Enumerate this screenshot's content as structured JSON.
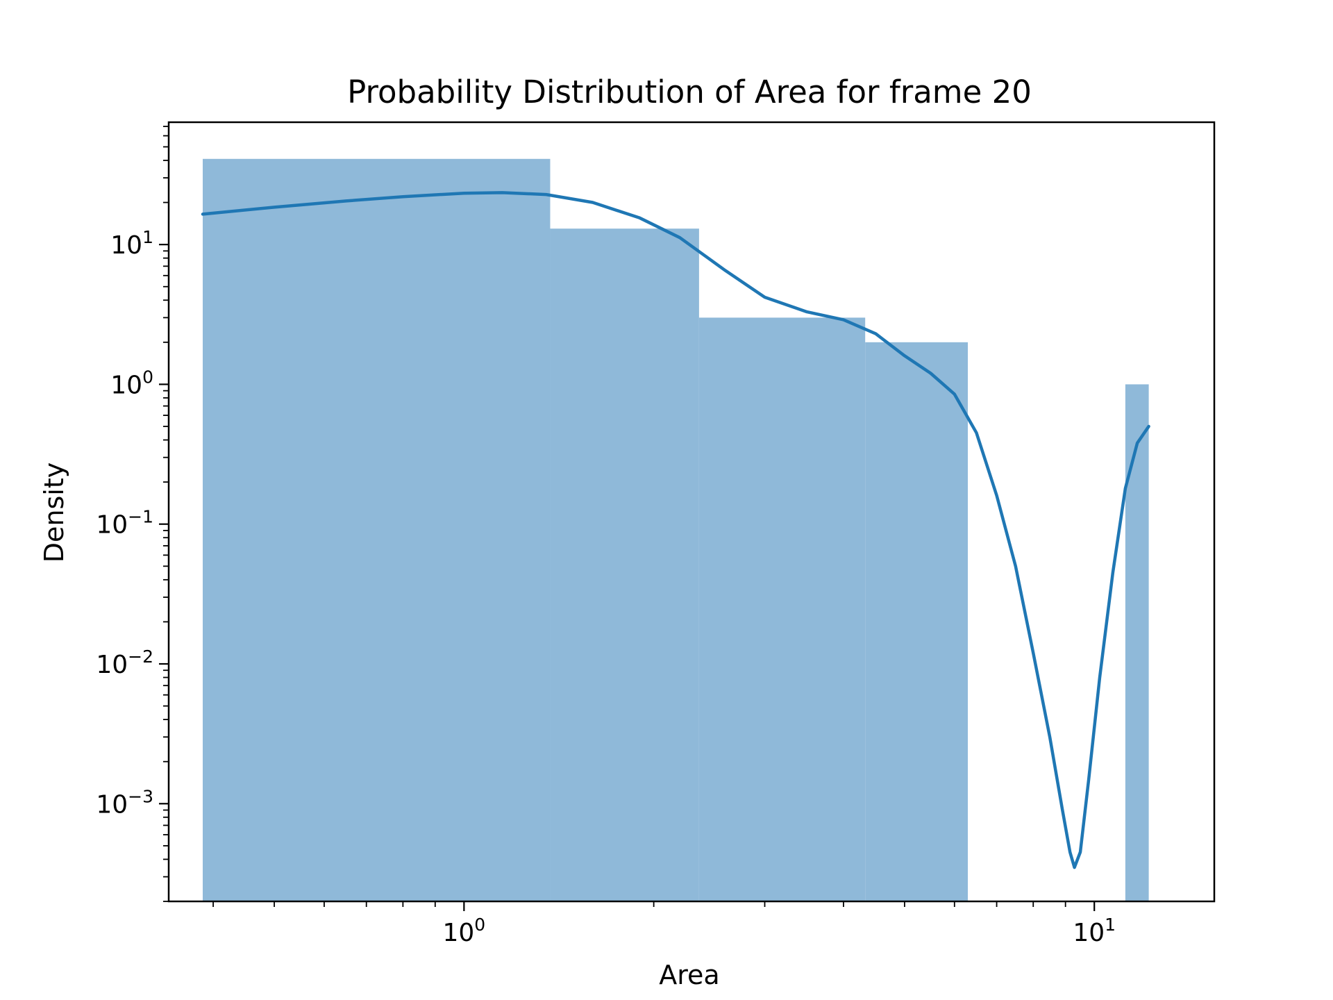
{
  "chart_data": {
    "type": "bar",
    "title": "Probability Distribution of Area for frame 20",
    "xlabel": "Area",
    "ylabel": "Density",
    "xscale": "log",
    "yscale": "log",
    "xlim": [
      0.34,
      15.5
    ],
    "ylim": [
      0.0002,
      75
    ],
    "grid": false,
    "legend": "none",
    "bar_color": "#8fb9d9",
    "line_color": "#1f77b4",
    "histogram": [
      {
        "x_start": 0.385,
        "x_end": 1.37,
        "density": 41
      },
      {
        "x_start": 1.37,
        "x_end": 2.36,
        "density": 13
      },
      {
        "x_start": 2.36,
        "x_end": 4.33,
        "density": 3
      },
      {
        "x_start": 4.33,
        "x_end": 6.3,
        "density": 2
      },
      {
        "x_start": 11.2,
        "x_end": 12.2,
        "density": 1
      }
    ],
    "kde_curve": {
      "x": [
        0.385,
        0.5,
        0.65,
        0.8,
        1.0,
        1.15,
        1.35,
        1.6,
        1.9,
        2.2,
        2.6,
        3.0,
        3.5,
        4.0,
        4.5,
        5.0,
        5.5,
        6.0,
        6.5,
        7.0,
        7.5,
        8.0,
        8.5,
        8.9,
        9.15,
        9.3,
        9.5,
        9.8,
        10.2,
        10.7,
        11.2,
        11.7,
        12.2
      ],
      "y": [
        16.5,
        18.5,
        20.5,
        22,
        23.3,
        23.5,
        22.8,
        20,
        15.5,
        11.2,
        6.5,
        4.2,
        3.3,
        2.9,
        2.3,
        1.6,
        1.2,
        0.85,
        0.45,
        0.16,
        0.05,
        0.012,
        0.003,
        0.0009,
        0.00045,
        0.00035,
        0.00045,
        0.0015,
        0.008,
        0.045,
        0.18,
        0.38,
        0.5
      ]
    },
    "x_ticks": [
      {
        "value": 1,
        "base": "10",
        "exp": "0"
      },
      {
        "value": 10,
        "base": "10",
        "exp": "1"
      }
    ],
    "y_ticks": [
      {
        "value": 10,
        "base": "10",
        "exp": "1"
      },
      {
        "value": 1,
        "base": "10",
        "exp": "0"
      },
      {
        "value": 0.1,
        "base": "10",
        "exp": "−1"
      },
      {
        "value": 0.01,
        "base": "10",
        "exp": "−2"
      },
      {
        "value": 0.001,
        "base": "10",
        "exp": "−3"
      }
    ]
  }
}
